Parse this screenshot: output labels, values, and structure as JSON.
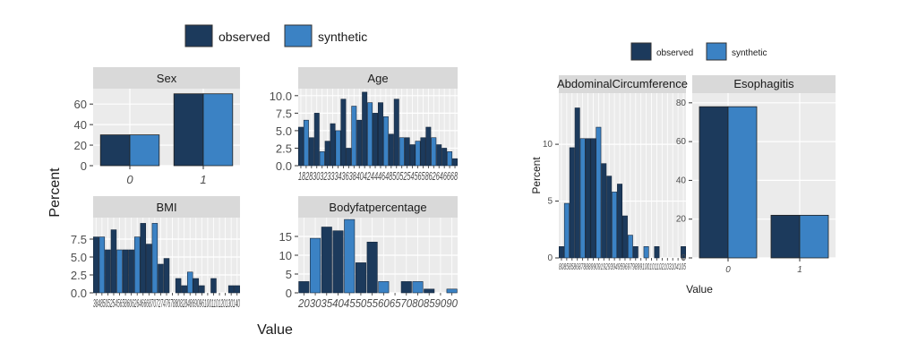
{
  "colors": {
    "observed": "#1c3a5c",
    "synthetic": "#3b82c4",
    "panel_bg": "#ebebeb",
    "strip_bg": "#d9d9d9",
    "grid": "#ffffff"
  },
  "figure_left": {
    "legend": [
      "observed",
      "synthetic"
    ],
    "xlabel": "Value",
    "ylabel": "Percent"
  },
  "figure_right": {
    "legend": [
      "observed",
      "synthetic"
    ],
    "xlabel": "Value",
    "ylabel": "Percent"
  },
  "chart_data": [
    {
      "type": "bar",
      "title": "Sex",
      "ylim": [
        0,
        75
      ],
      "yticks": [
        "0",
        "20",
        "40",
        "60"
      ],
      "categories": [
        "0",
        "1"
      ],
      "series": [
        {
          "name": "observed",
          "values": [
            30,
            70
          ]
        },
        {
          "name": "synthetic",
          "values": [
            30,
            70
          ]
        }
      ]
    },
    {
      "type": "bar",
      "title": "Age",
      "ylim": [
        0,
        11
      ],
      "yticks": [
        "0.0",
        "2.5",
        "5.0",
        "7.5",
        "10.0"
      ],
      "xtick_text": "18283032333436384042444648505254565862646668",
      "values": [
        5.5,
        6.5,
        4,
        7.5,
        2,
        3.5,
        6,
        5,
        9.5,
        2.5,
        8.5,
        6.5,
        10.5,
        9,
        7.5,
        9,
        7,
        4.5,
        9.5,
        4,
        4,
        3,
        3.5,
        4,
        5.5,
        4,
        3,
        2.5,
        2,
        1
      ]
    },
    {
      "type": "bar",
      "title": "BMI",
      "ylim": [
        0,
        10.5
      ],
      "yticks": [
        "0.0",
        "2.5",
        "5.0",
        "7.5"
      ],
      "xtick_text": "3848505254565860626466687072747678808284869096100110120130140",
      "values": [
        7.8,
        7.8,
        6,
        8.8,
        6,
        6,
        6,
        7.8,
        9.7,
        6.8,
        9.7,
        4,
        4.8,
        0,
        2,
        1,
        2.9,
        2,
        1,
        0,
        2,
        0,
        0,
        1,
        1
      ]
    },
    {
      "type": "bar",
      "title": "Bodyfatpercentage",
      "ylim": [
        0,
        20
      ],
      "yticks": [
        "0",
        "5",
        "10",
        "15"
      ],
      "xtick_text": "2030354045505560657080859090",
      "values": [
        3,
        14.5,
        17.5,
        16.5,
        19.5,
        8,
        13.5,
        3,
        0,
        3,
        3,
        1,
        0,
        1
      ]
    },
    {
      "type": "bar",
      "title": "AbdominalCircumference",
      "ylim": [
        0,
        14.5
      ],
      "yticks": [
        "0",
        "5",
        "10"
      ],
      "xtick_text": "8085858687888990919293949596979899100101102103104105",
      "values": [
        1,
        4.8,
        9.7,
        13.2,
        10.5,
        10.5,
        10.5,
        11.5,
        8.3,
        7.2,
        5.8,
        6.5,
        3.7,
        2,
        1,
        0,
        1,
        0,
        1,
        0,
        0,
        0,
        0,
        1
      ]
    },
    {
      "type": "bar",
      "title": "Esophagitis",
      "ylim": [
        0,
        85
      ],
      "yticks": [
        "0",
        "20",
        "40",
        "60",
        "80"
      ],
      "categories": [
        "0",
        "1"
      ],
      "series": [
        {
          "name": "observed",
          "values": [
            78,
            22
          ]
        },
        {
          "name": "synthetic",
          "values": [
            78,
            22
          ]
        }
      ]
    }
  ]
}
